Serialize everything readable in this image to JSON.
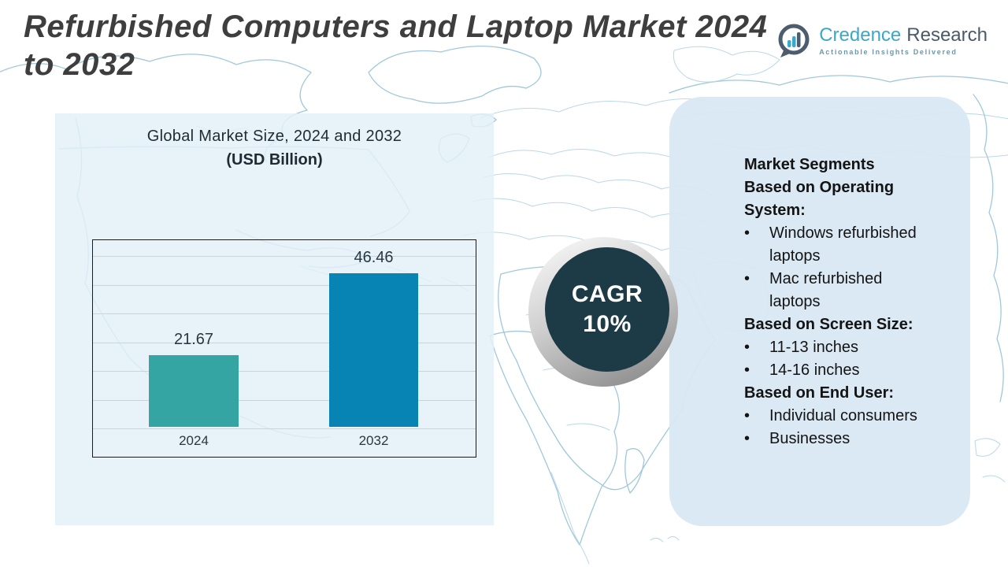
{
  "page": {
    "title_lines": [
      "Refurbished Computers and Laptop Market 2024",
      "to 2032"
    ]
  },
  "logo": {
    "brand_first": "Credence",
    "brand_second": "Research",
    "tagline": "Actionable Insights Delivered",
    "icon": "bar-chart-speech-bubble",
    "colors": {
      "primary": "#3ba7c9",
      "secondary": "#4a5a6b",
      "tagline": "#6e96a5"
    }
  },
  "chart_panel": {
    "title": "Global Market Size, 2024 and 2032",
    "subtitle": "(USD Billion)"
  },
  "chart_data": {
    "type": "bar",
    "title": "Global Market Size, 2024 and 2032",
    "unit": "USD Billion",
    "categories": [
      "2024",
      "2032"
    ],
    "values": [
      21.67,
      46.46
    ],
    "bar_colors": [
      "#35a5a3",
      "#0884b4"
    ],
    "ylim": [
      0,
      57
    ],
    "gridline_count": 7,
    "grid": true,
    "legend": "none"
  },
  "cagr_badge": {
    "label": "CAGR",
    "value": "10%",
    "bg_color": "#1d3b47",
    "text_color": "#ffffff"
  },
  "segments_panel": {
    "bullet": "•",
    "sections": [
      {
        "heading": "Market Segments Based on Operating System:",
        "heading_lines": [
          "Market Segments",
          "Based on Operating",
          "System:"
        ],
        "items": [
          "Windows refurbished laptops",
          "Mac refurbished laptops"
        ]
      },
      {
        "heading": "Based on Screen Size:",
        "heading_lines": [
          "Based on Screen Size:"
        ],
        "items": [
          "11-13 inches",
          "14-16 inches"
        ]
      },
      {
        "heading": "Based on End User:",
        "heading_lines": [
          "Based on End User:"
        ],
        "items": [
          "Individual consumers",
          "Businesses"
        ]
      }
    ]
  }
}
